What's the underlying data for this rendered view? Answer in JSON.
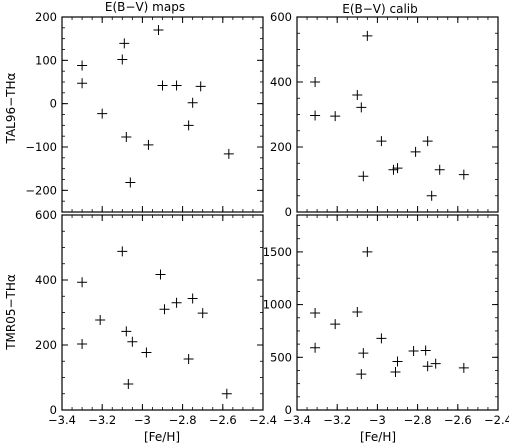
{
  "figure": {
    "col_titles": [
      "E(B−V) maps",
      "E(B−V) calib"
    ],
    "row_labels": [
      "TAL96−THα",
      "TMR05−THα"
    ],
    "xlabel": "[Fe/H]"
  },
  "chart_data": [
    {
      "type": "scatter",
      "title": "E(B−V) maps",
      "ylabel": "TAL96−THα",
      "xlim": [
        -3.4,
        -2.4
      ],
      "ylim": [
        -250,
        200
      ],
      "xticks": [
        -3.4,
        -3.2,
        -3,
        -2.8,
        -2.6,
        -2.4
      ],
      "xticklabels": [
        "",
        "",
        "",
        "",
        "",
        ""
      ],
      "yticks": [
        -200,
        -100,
        0,
        100,
        200
      ],
      "yticklabels": [
        "−200",
        "−100",
        "0",
        "100",
        "200"
      ],
      "series": [
        {
          "marker": "+",
          "x": [
            -3.3,
            -3.3,
            -3.2,
            -3.1,
            -3.09,
            -3.08,
            -3.06,
            -2.97,
            -2.92,
            -2.9,
            -2.83,
            -2.77,
            -2.75,
            -2.71,
            -2.57
          ],
          "y": [
            88,
            47,
            -23,
            102,
            139,
            -77,
            -182,
            -95,
            170,
            42,
            42,
            -50,
            2,
            40,
            -116
          ]
        }
      ]
    },
    {
      "type": "scatter",
      "title": "E(B−V) calib",
      "ylabel": "",
      "xlim": [
        -3.4,
        -2.4
      ],
      "ylim": [
        0,
        600
      ],
      "xticks": [
        -3.4,
        -3.2,
        -3,
        -2.8,
        -2.6,
        -2.4
      ],
      "xticklabels": [
        "",
        "",
        "",
        "",
        "",
        ""
      ],
      "yticks": [
        0,
        200,
        400,
        600
      ],
      "yticklabels": [
        "0",
        "200",
        "400",
        "600"
      ],
      "series": [
        {
          "marker": "+",
          "x": [
            -3.31,
            -3.31,
            -3.21,
            -3.1,
            -3.08,
            -3.07,
            -3.05,
            -2.98,
            -2.92,
            -2.9,
            -2.81,
            -2.75,
            -2.73,
            -2.69,
            -2.57
          ],
          "y": [
            400,
            297,
            295,
            360,
            322,
            110,
            542,
            218,
            130,
            135,
            185,
            218,
            50,
            130,
            115
          ]
        }
      ]
    },
    {
      "type": "scatter",
      "title": "",
      "ylabel": "TMR05−THα",
      "xlim": [
        -3.4,
        -2.4
      ],
      "ylim": [
        0,
        600
      ],
      "xticks": [
        -3.4,
        -3.2,
        -3,
        -2.8,
        -2.6,
        -2.4
      ],
      "xticklabels": [
        "−3.4",
        "−3.2",
        "−3",
        "−2.8",
        "−2.6",
        "−2.4"
      ],
      "xlabel": "[Fe/H]",
      "yticks": [
        0,
        200,
        400,
        600
      ],
      "yticklabels": [
        "0",
        "200",
        "400",
        "600"
      ],
      "series": [
        {
          "marker": "+",
          "x": [
            -3.3,
            -3.3,
            -3.21,
            -3.1,
            -3.08,
            -3.07,
            -3.05,
            -2.98,
            -2.91,
            -2.89,
            -2.83,
            -2.77,
            -2.75,
            -2.7,
            -2.58
          ],
          "y": [
            393,
            203,
            277,
            488,
            242,
            80,
            210,
            177,
            417,
            310,
            330,
            157,
            343,
            298,
            50
          ]
        }
      ]
    },
    {
      "type": "scatter",
      "title": "",
      "ylabel": "",
      "xlim": [
        -3.4,
        -2.4
      ],
      "ylim": [
        0,
        1850
      ],
      "xticks": [
        -3.4,
        -3.2,
        -3,
        -2.8,
        -2.6,
        -2.4
      ],
      "xticklabels": [
        "−3.4",
        "−3.2",
        "−3",
        "−2.8",
        "−2.6",
        "−2.4"
      ],
      "xlabel": "[Fe/H]",
      "yticks": [
        0,
        500,
        1000,
        1500
      ],
      "yticklabels": [
        "0",
        "500",
        "1000",
        "1500"
      ],
      "series": [
        {
          "marker": "+",
          "x": [
            -3.31,
            -3.31,
            -3.21,
            -3.1,
            -3.08,
            -3.07,
            -3.05,
            -2.98,
            -2.91,
            -2.9,
            -2.82,
            -2.76,
            -2.75,
            -2.71,
            -2.57
          ],
          "y": [
            920,
            590,
            815,
            930,
            340,
            540,
            1500,
            680,
            360,
            460,
            560,
            565,
            415,
            440,
            400
          ]
        }
      ]
    }
  ]
}
